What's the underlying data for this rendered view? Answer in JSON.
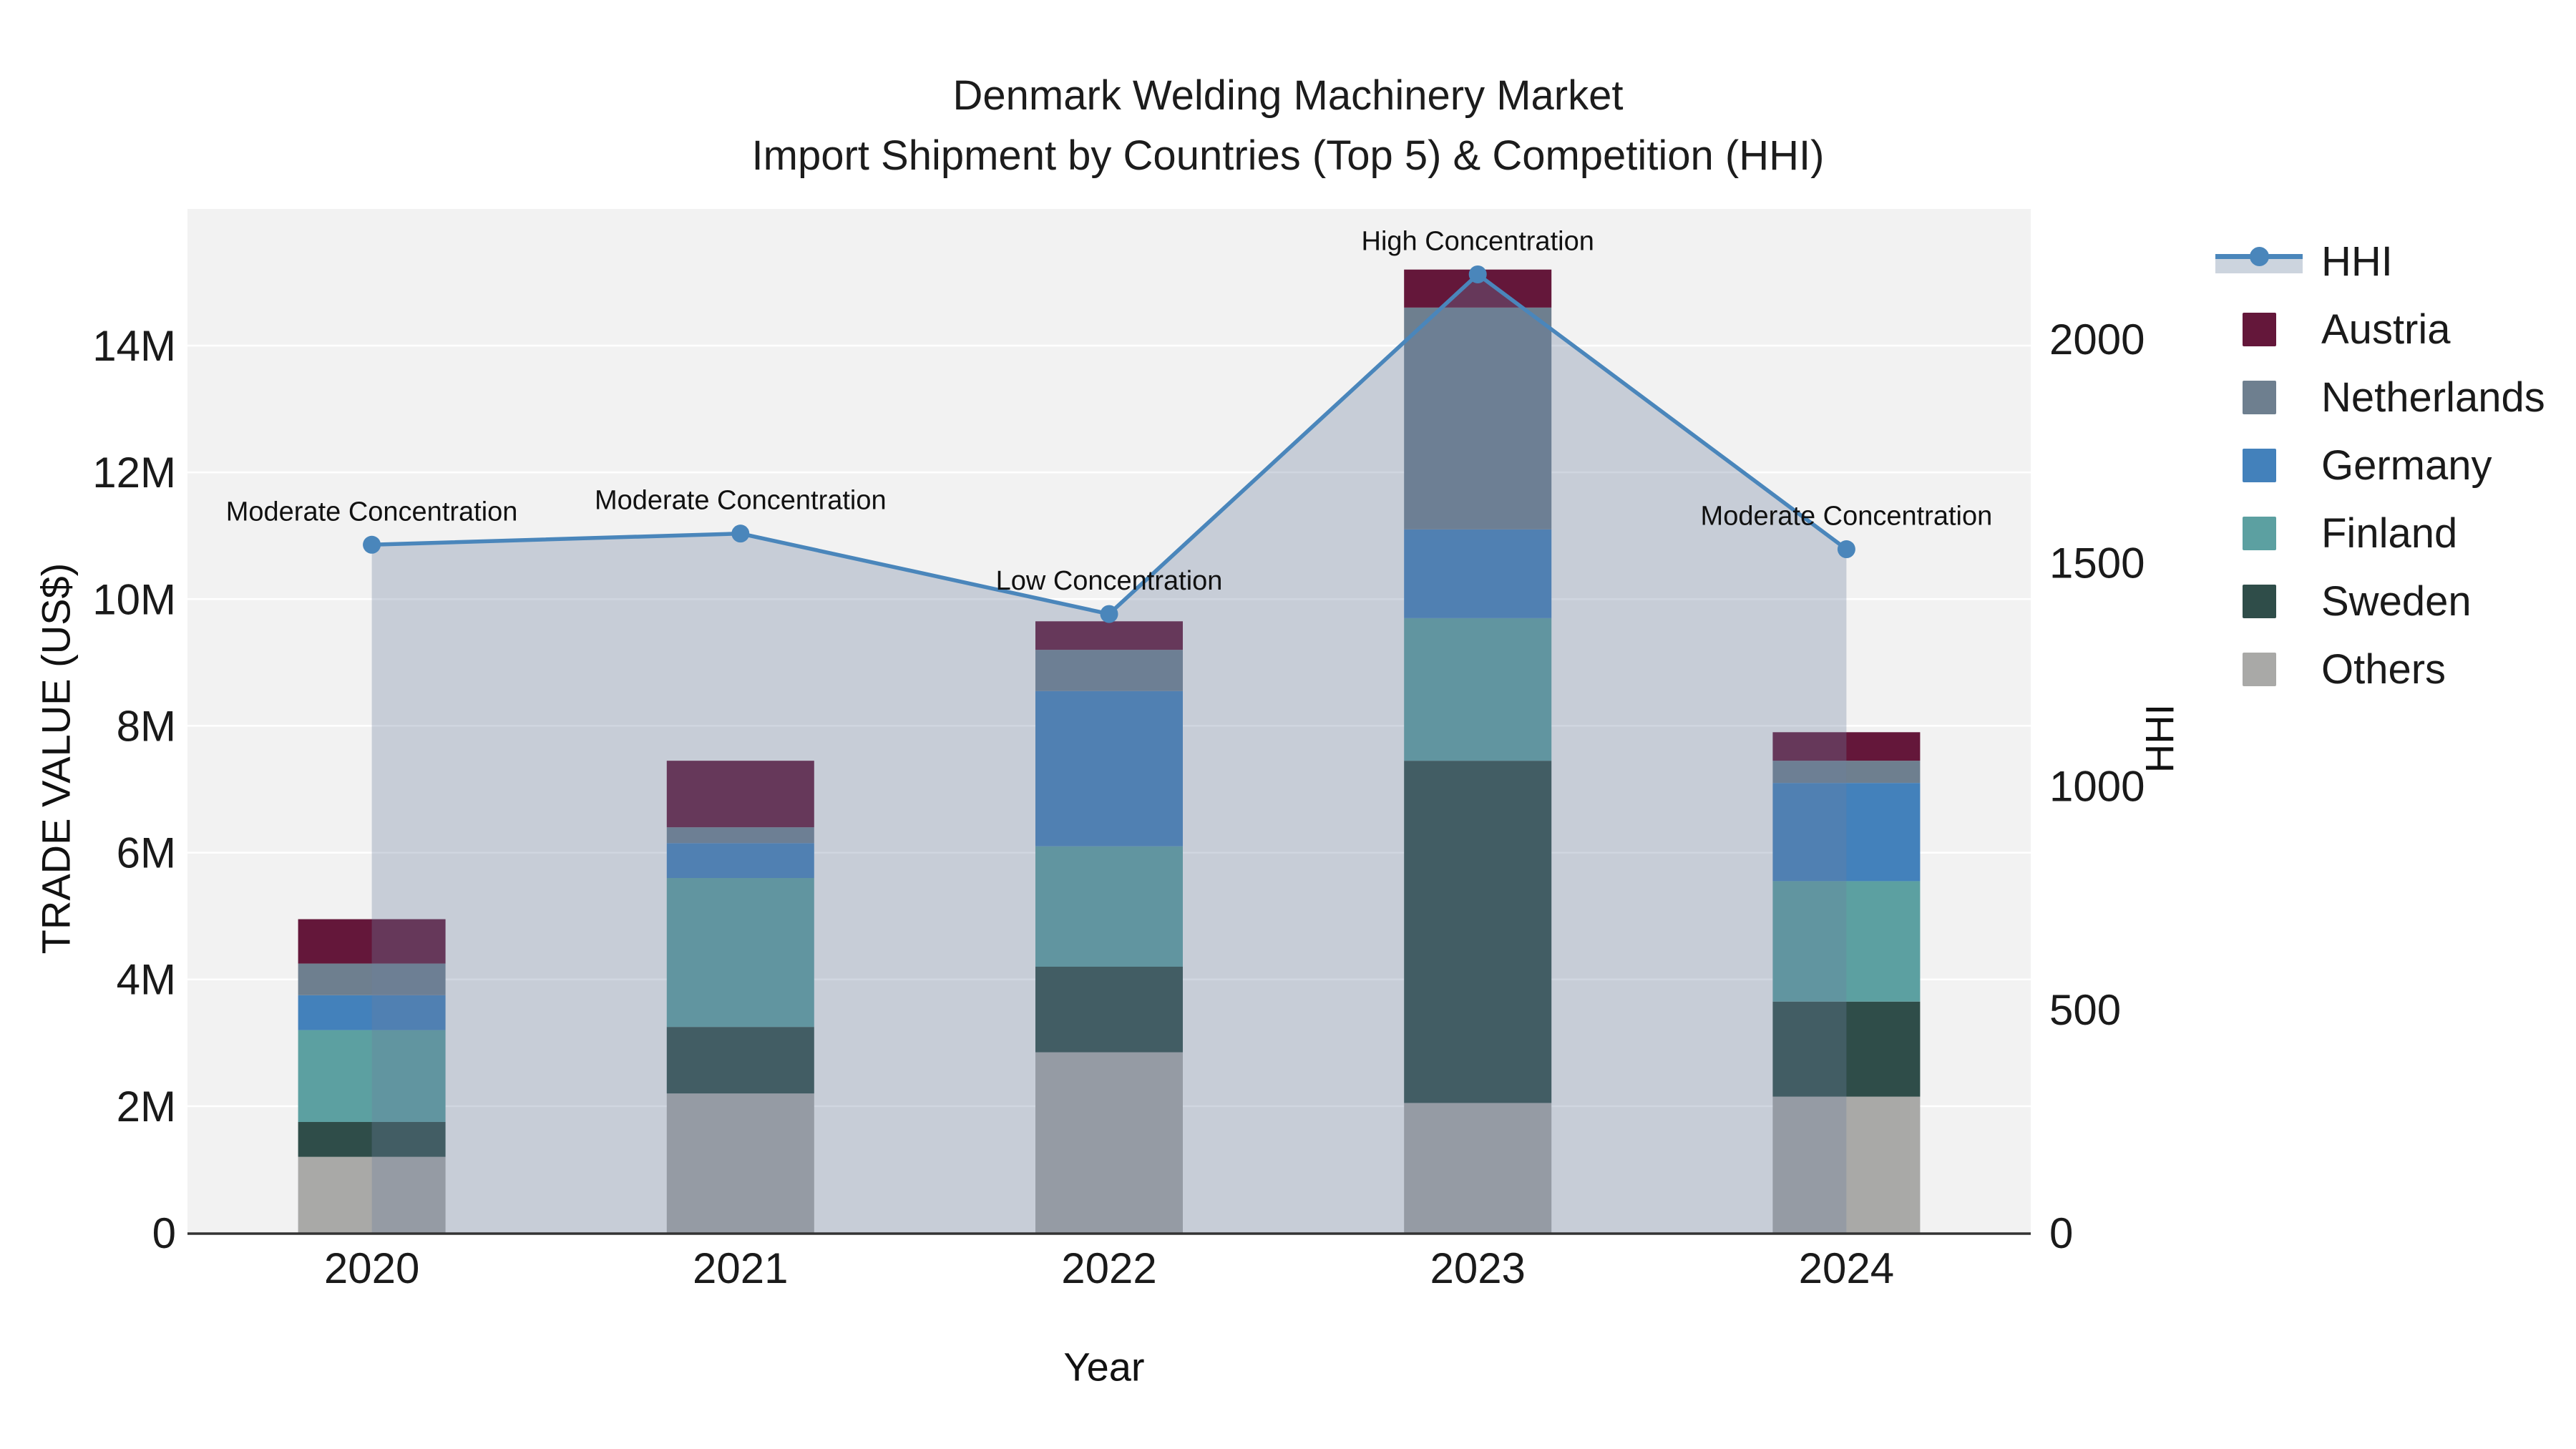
{
  "title": {
    "line1": "Denmark Welding Machinery Market",
    "line2": "Import Shipment by Countries (Top 5) & Competition (HHI)"
  },
  "axes": {
    "x": {
      "title": "Year",
      "categories": [
        "2020",
        "2021",
        "2022",
        "2023",
        "2024"
      ]
    },
    "y_left": {
      "title": "TRADE VALUE (US$)",
      "tick_labels": [
        "0",
        "2M",
        "4M",
        "6M",
        "8M",
        "10M",
        "12M",
        "14M"
      ],
      "tick_values_musd": [
        0,
        2,
        4,
        6,
        8,
        10,
        12,
        14
      ],
      "range_musd": [
        0,
        16.15
      ]
    },
    "y_right": {
      "title": "HHI",
      "tick_labels": [
        "0",
        "500",
        "1000",
        "1500",
        "2000"
      ],
      "tick_values": [
        0,
        500,
        1000,
        1500,
        2000
      ],
      "range": [
        0,
        2000
      ]
    }
  },
  "chart_data": {
    "type": "combo: stacked bar + line with area fill",
    "categories": [
      "2020",
      "2021",
      "2022",
      "2023",
      "2024"
    ],
    "unit": "trade value in millions of US$ (estimated from chart)",
    "series": [
      {
        "name": "Others",
        "color": "#A9A9A7",
        "values": [
          1.2,
          2.2,
          2.85,
          2.05,
          2.15
        ]
      },
      {
        "name": "Sweden",
        "color": "#2F4D49",
        "values": [
          0.55,
          1.05,
          1.35,
          5.4,
          1.5
        ]
      },
      {
        "name": "Finland",
        "color": "#5CA0A1",
        "values": [
          1.45,
          2.35,
          1.9,
          2.25,
          1.9
        ]
      },
      {
        "name": "Germany",
        "color": "#4381BB",
        "values": [
          0.55,
          0.55,
          2.45,
          1.4,
          1.55
        ]
      },
      {
        "name": "Netherlands",
        "color": "#6E7F8F",
        "values": [
          0.5,
          0.25,
          0.65,
          3.5,
          0.35
        ]
      },
      {
        "name": "Austria",
        "color": "#64173A",
        "values": [
          0.7,
          1.05,
          0.45,
          0.6,
          0.45
        ]
      }
    ],
    "stack_note": "series listed bottom-to-top of stack",
    "totals_musd": [
      4.95,
      7.5,
      9.65,
      15.2,
      7.9
    ],
    "line_series": {
      "name": "HHI",
      "color": "#4A86BB",
      "area_fill": "rgba(109,126,158,0.32)",
      "values": [
        1540,
        1565,
        1385,
        2145,
        1530
      ]
    },
    "annotations": [
      {
        "category": "2020",
        "text": "Moderate Concentration"
      },
      {
        "category": "2021",
        "text": "Moderate Concentration"
      },
      {
        "category": "2022",
        "text": "Low Concentration"
      },
      {
        "category": "2023",
        "text": "High Concentration"
      },
      {
        "category": "2024",
        "text": "Moderate Concentration"
      }
    ],
    "grid": "horizontal white gridlines on light-gray plot background",
    "legend_position": "right"
  },
  "legend": {
    "entries": [
      {
        "label": "HHI",
        "type": "line",
        "color": "#4A86BB"
      },
      {
        "label": "Austria",
        "type": "swatch",
        "color": "#64173A"
      },
      {
        "label": "Netherlands",
        "type": "swatch",
        "color": "#6E7F8F"
      },
      {
        "label": "Germany",
        "type": "swatch",
        "color": "#4381BB"
      },
      {
        "label": "Finland",
        "type": "swatch",
        "color": "#5CA0A1"
      },
      {
        "label": "Sweden",
        "type": "swatch",
        "color": "#2F4D49"
      },
      {
        "label": "Others",
        "type": "swatch",
        "color": "#A9A9A7"
      }
    ]
  },
  "colors": {
    "plot_bg": "#F2F2F2",
    "gridline": "#FFFFFF",
    "axis_line": "#333333",
    "text": "#1A1A1A",
    "annotation_text": "#111111"
  }
}
